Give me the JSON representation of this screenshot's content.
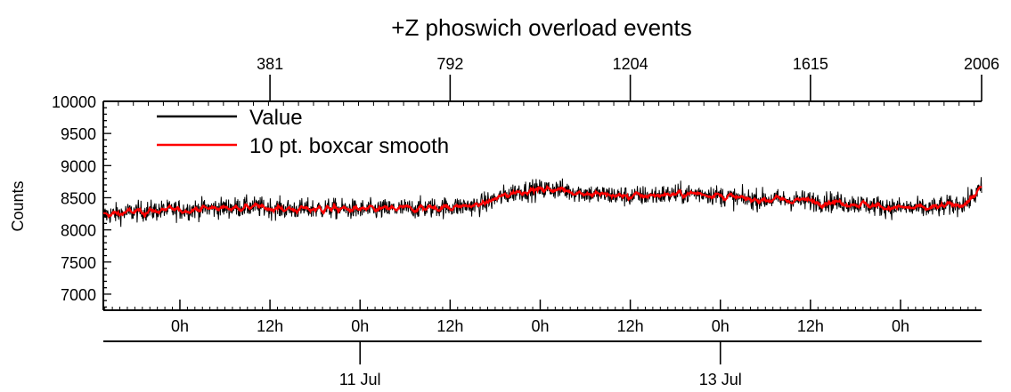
{
  "chart_data": {
    "type": "line",
    "title": "+Z phoswich overload events",
    "ylabel": "Counts",
    "ylim": [
      6750,
      10000
    ],
    "y_ticks": [
      7000,
      7500,
      8000,
      8500,
      9000,
      9500,
      10000
    ],
    "y_tick_labels": [
      "7000",
      "7500",
      "8000",
      "8500",
      "9000",
      "9500",
      "10000"
    ],
    "x_range_hours": [
      0,
      117
    ],
    "top_axis_ticks": [
      {
        "label": "381",
        "hour": 22.2
      },
      {
        "label": "792",
        "hour": 46.2
      },
      {
        "label": "1204",
        "hour": 70.2
      },
      {
        "label": "1615",
        "hour": 94.2
      },
      {
        "label": "2006",
        "hour": 117.0
      }
    ],
    "bottom_time_ticks": [
      {
        "label": "0h",
        "hour": 10.2
      },
      {
        "label": "12h",
        "hour": 22.2
      },
      {
        "label": "0h",
        "hour": 34.2
      },
      {
        "label": "12h",
        "hour": 46.2
      },
      {
        "label": "0h",
        "hour": 58.2
      },
      {
        "label": "12h",
        "hour": 70.2
      },
      {
        "label": "0h",
        "hour": 82.2
      },
      {
        "label": "12h",
        "hour": 94.2
      },
      {
        "label": "0h",
        "hour": 106.2
      }
    ],
    "date_ticks": [
      {
        "label": "11 Jul",
        "hour": 34.2
      },
      {
        "label": "13 Jul",
        "hour": 82.2
      }
    ],
    "legend_position": "top-left",
    "series": [
      {
        "name": "Value",
        "color": "#000000",
        "noise_amplitude": 180,
        "n_points": 2006
      },
      {
        "name": "10 pt. boxcar smooth",
        "color": "#ff0000",
        "smoothing_window": 10
      }
    ],
    "trend_points": {
      "x_hours": [
        0,
        5,
        10,
        15,
        20,
        25,
        30,
        35,
        40,
        45,
        50,
        55,
        60,
        65,
        70,
        75,
        80,
        85,
        90,
        95,
        100,
        105,
        110,
        115,
        117
      ],
      "y": [
        8230,
        8290,
        8310,
        8340,
        8360,
        8320,
        8330,
        8310,
        8330,
        8350,
        8380,
        8600,
        8640,
        8560,
        8520,
        8550,
        8570,
        8480,
        8470,
        8450,
        8410,
        8350,
        8330,
        8420,
        8650
      ]
    }
  }
}
